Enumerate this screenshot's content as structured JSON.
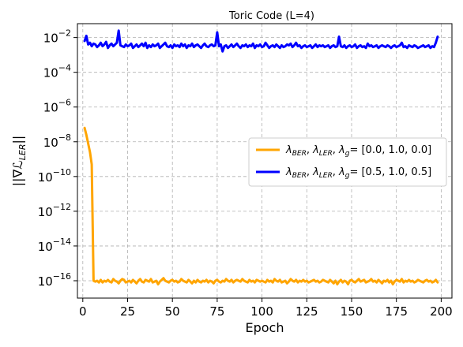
{
  "chart_data": {
    "type": "line",
    "title": "Toric Code (L=4)",
    "xlabel": "Epoch",
    "ylabel": "||∇ℒ_LER||",
    "xlim": [
      -3,
      206
    ],
    "ylim_log10": [
      -17,
      -1.2
    ],
    "yscale": "log",
    "grid": true,
    "legend_position": "right",
    "xticks": [
      0,
      25,
      50,
      75,
      100,
      125,
      150,
      175,
      200
    ],
    "yticks_exp": [
      -2,
      -4,
      -6,
      -8,
      -10,
      -12,
      -14,
      -16
    ],
    "series": [
      {
        "name": "λ_BER, λ_LER, λ_g = [0.0, 1.0, 0.0]",
        "legend_label": "[0.0, 1.0, 0.0]",
        "color": "#ffa500",
        "x": [
          1,
          2,
          3,
          4,
          5,
          6,
          7,
          8,
          9,
          10,
          11,
          12,
          13,
          14,
          15,
          16,
          17,
          18,
          19,
          20,
          21,
          22,
          23,
          24,
          25,
          26,
          27,
          28,
          29,
          30,
          31,
          32,
          33,
          34,
          35,
          36,
          37,
          38,
          39,
          40,
          41,
          42,
          43,
          44,
          45,
          46,
          47,
          48,
          49,
          50,
          51,
          52,
          53,
          54,
          55,
          56,
          57,
          58,
          59,
          60,
          61,
          62,
          63,
          64,
          65,
          66,
          67,
          68,
          69,
          70,
          71,
          72,
          73,
          74,
          75,
          76,
          77,
          78,
          79,
          80,
          81,
          82,
          83,
          84,
          85,
          86,
          87,
          88,
          89,
          90,
          91,
          92,
          93,
          94,
          95,
          96,
          97,
          98,
          99,
          100,
          101,
          102,
          103,
          104,
          105,
          106,
          107,
          108,
          109,
          110,
          111,
          112,
          113,
          114,
          115,
          116,
          117,
          118,
          119,
          120,
          121,
          122,
          123,
          124,
          125,
          126,
          127,
          128,
          129,
          130,
          131,
          132,
          133,
          134,
          135,
          136,
          137,
          138,
          139,
          140,
          141,
          142,
          143,
          144,
          145,
          146,
          147,
          148,
          149,
          150,
          151,
          152,
          153,
          154,
          155,
          156,
          157,
          158,
          159,
          160,
          161,
          162,
          163,
          164,
          165,
          166,
          167,
          168,
          169,
          170,
          171,
          172,
          173,
          174,
          175,
          176,
          177,
          178,
          179,
          180,
          181,
          182,
          183,
          184,
          185,
          186,
          187,
          188,
          189,
          190,
          191,
          192,
          193,
          194,
          195,
          196,
          197,
          198,
          199,
          200
        ],
        "log10_y": [
          -7.2,
          -7.6,
          -8.1,
          -8.6,
          -9.3,
          -16.0,
          -16.05,
          -16.0,
          -16.1,
          -15.95,
          -16.1,
          -16.0,
          -16.05,
          -15.95,
          -16.05,
          -16.1,
          -15.9,
          -16.0,
          -16.05,
          -16.15,
          -16.0,
          -15.9,
          -15.95,
          -16.1,
          -16.05,
          -16.0,
          -16.1,
          -15.95,
          -16.05,
          -16.15,
          -16.0,
          -15.9,
          -16.05,
          -16.1,
          -15.95,
          -16.0,
          -16.05,
          -15.9,
          -16.1,
          -16.05,
          -16.0,
          -16.2,
          -16.05,
          -15.95,
          -15.85,
          -16.0,
          -16.05,
          -16.1,
          -16.0,
          -15.95,
          -16.05,
          -16.0,
          -16.1,
          -16.05,
          -15.9,
          -16.0,
          -16.05,
          -16.1,
          -15.95,
          -16.05,
          -16.15,
          -16.0,
          -16.1,
          -15.95,
          -16.05,
          -16.1,
          -16.0,
          -16.05,
          -15.95,
          -16.1,
          -16.0,
          -16.05,
          -16.15,
          -16.0,
          -15.95,
          -16.05,
          -16.1,
          -16.0,
          -16.05,
          -15.9,
          -16.0,
          -16.05,
          -15.95,
          -16.1,
          -16.0,
          -15.95,
          -16.0,
          -16.05,
          -15.9,
          -16.0,
          -16.05,
          -16.1,
          -15.95,
          -16.05,
          -16.0,
          -16.1,
          -15.95,
          -16.0,
          -16.05,
          -16.0,
          -16.05,
          -16.1,
          -15.95,
          -16.05,
          -16.0,
          -16.1,
          -15.9,
          -16.0,
          -16.05,
          -15.95,
          -16.1,
          -16.05,
          -16.0,
          -16.15,
          -16.05,
          -15.9,
          -16.0,
          -16.05,
          -15.95,
          -16.1,
          -16.0,
          -16.05,
          -15.95,
          -16.05,
          -16.0,
          -16.1,
          -16.05,
          -16.0,
          -15.95,
          -16.05,
          -16.0,
          -16.1,
          -16.05,
          -15.95,
          -16.0,
          -16.05,
          -16.1,
          -15.95,
          -16.05,
          -16.15,
          -16.0,
          -16.2,
          -16.05,
          -15.95,
          -16.1,
          -16.0,
          -16.05,
          -16.2,
          -16.0,
          -15.95,
          -16.05,
          -16.1,
          -16.0,
          -15.9,
          -16.05,
          -16.0,
          -15.95,
          -16.1,
          -16.05,
          -16.0,
          -15.9,
          -16.05,
          -16.0,
          -16.1,
          -15.95,
          -16.05,
          -16.15,
          -16.0,
          -16.05,
          -15.95,
          -16.1,
          -16.0,
          -16.2,
          -16.05,
          -15.95,
          -16.0,
          -16.05,
          -15.9,
          -16.1,
          -16.0,
          -16.05,
          -15.95,
          -16.05,
          -16.0,
          -16.1,
          -16.05,
          -15.95,
          -16.0,
          -16.05,
          -16.1,
          -16.0,
          -15.95,
          -16.05,
          -16.0,
          -16.1,
          -16.05,
          -15.95,
          -16.1
        ]
      },
      {
        "name": "λ_BER, λ_LER, λ_g = [0.5, 1.0, 0.5]",
        "legend_label": "[0.5, 1.0, 0.5]",
        "color": "#0000ff",
        "x": [
          1,
          2,
          3,
          4,
          5,
          6,
          7,
          8,
          9,
          10,
          11,
          12,
          13,
          14,
          15,
          16,
          17,
          18,
          19,
          20,
          21,
          22,
          23,
          24,
          25,
          26,
          27,
          28,
          29,
          30,
          31,
          32,
          33,
          34,
          35,
          36,
          37,
          38,
          39,
          40,
          41,
          42,
          43,
          44,
          45,
          46,
          47,
          48,
          49,
          50,
          51,
          52,
          53,
          54,
          55,
          56,
          57,
          58,
          59,
          60,
          61,
          62,
          63,
          64,
          65,
          66,
          67,
          68,
          69,
          70,
          71,
          72,
          73,
          74,
          75,
          76,
          77,
          78,
          79,
          80,
          81,
          82,
          83,
          84,
          85,
          86,
          87,
          88,
          89,
          90,
          91,
          92,
          93,
          94,
          95,
          96,
          97,
          98,
          99,
          100,
          101,
          102,
          103,
          104,
          105,
          106,
          107,
          108,
          109,
          110,
          111,
          112,
          113,
          114,
          115,
          116,
          117,
          118,
          119,
          120,
          121,
          122,
          123,
          124,
          125,
          126,
          127,
          128,
          129,
          130,
          131,
          132,
          133,
          134,
          135,
          136,
          137,
          138,
          139,
          140,
          141,
          142,
          143,
          144,
          145,
          146,
          147,
          148,
          149,
          150,
          151,
          152,
          153,
          154,
          155,
          156,
          157,
          158,
          159,
          160,
          161,
          162,
          163,
          164,
          165,
          166,
          167,
          168,
          169,
          170,
          171,
          172,
          173,
          174,
          175,
          176,
          177,
          178,
          179,
          180,
          181,
          182,
          183,
          184,
          185,
          186,
          187,
          188,
          189,
          190,
          191,
          192,
          193,
          194,
          195,
          196,
          197,
          198,
          199,
          200
        ],
        "log10_y": [
          -2.2,
          -1.9,
          -2.4,
          -2.3,
          -2.5,
          -2.35,
          -2.4,
          -2.55,
          -2.45,
          -2.3,
          -2.5,
          -2.4,
          -2.25,
          -2.6,
          -2.45,
          -2.35,
          -2.5,
          -2.4,
          -2.3,
          -1.6,
          -2.45,
          -2.5,
          -2.55,
          -2.4,
          -2.5,
          -2.45,
          -2.35,
          -2.6,
          -2.5,
          -2.4,
          -2.55,
          -2.45,
          -2.35,
          -2.5,
          -2.3,
          -2.6,
          -2.45,
          -2.55,
          -2.4,
          -2.5,
          -2.45,
          -2.35,
          -2.6,
          -2.5,
          -2.4,
          -2.3,
          -2.5,
          -2.55,
          -2.45,
          -2.6,
          -2.4,
          -2.5,
          -2.45,
          -2.55,
          -2.35,
          -2.5,
          -2.4,
          -2.6,
          -2.45,
          -2.5,
          -2.35,
          -2.55,
          -2.45,
          -2.4,
          -2.5,
          -2.6,
          -2.45,
          -2.35,
          -2.5,
          -2.55,
          -2.45,
          -2.4,
          -2.5,
          -2.45,
          -1.7,
          -2.5,
          -2.4,
          -2.8,
          -2.5,
          -2.45,
          -2.6,
          -2.5,
          -2.4,
          -2.55,
          -2.45,
          -2.35,
          -2.5,
          -2.6,
          -2.45,
          -2.5,
          -2.4,
          -2.55,
          -2.45,
          -2.5,
          -2.35,
          -2.6,
          -2.45,
          -2.5,
          -2.4,
          -2.55,
          -2.5,
          -2.3,
          -2.45,
          -2.6,
          -2.5,
          -2.45,
          -2.55,
          -2.4,
          -2.5,
          -2.6,
          -2.45,
          -2.55,
          -2.5,
          -2.4,
          -2.45,
          -2.35,
          -2.55,
          -2.45,
          -2.3,
          -2.5,
          -2.45,
          -2.6,
          -2.5,
          -2.45,
          -2.55,
          -2.5,
          -2.45,
          -2.6,
          -2.5,
          -2.4,
          -2.55,
          -2.45,
          -2.5,
          -2.45,
          -2.55,
          -2.5,
          -2.45,
          -2.6,
          -2.5,
          -2.45,
          -2.55,
          -2.5,
          -1.95,
          -2.5,
          -2.55,
          -2.45,
          -2.6,
          -2.5,
          -2.45,
          -2.55,
          -2.5,
          -2.4,
          -2.6,
          -2.5,
          -2.45,
          -2.55,
          -2.5,
          -2.6,
          -2.35,
          -2.5,
          -2.45,
          -2.55,
          -2.5,
          -2.45,
          -2.6,
          -2.5,
          -2.45,
          -2.5,
          -2.55,
          -2.45,
          -2.5,
          -2.6,
          -2.5,
          -2.45,
          -2.55,
          -2.5,
          -2.45,
          -2.3,
          -2.55,
          -2.5,
          -2.6,
          -2.45,
          -2.5,
          -2.55,
          -2.45,
          -2.5,
          -2.6,
          -2.55,
          -2.5,
          -2.45,
          -2.55,
          -2.5,
          -2.45,
          -2.6,
          -2.5,
          -2.55,
          -2.3,
          -1.95
        ]
      }
    ]
  }
}
